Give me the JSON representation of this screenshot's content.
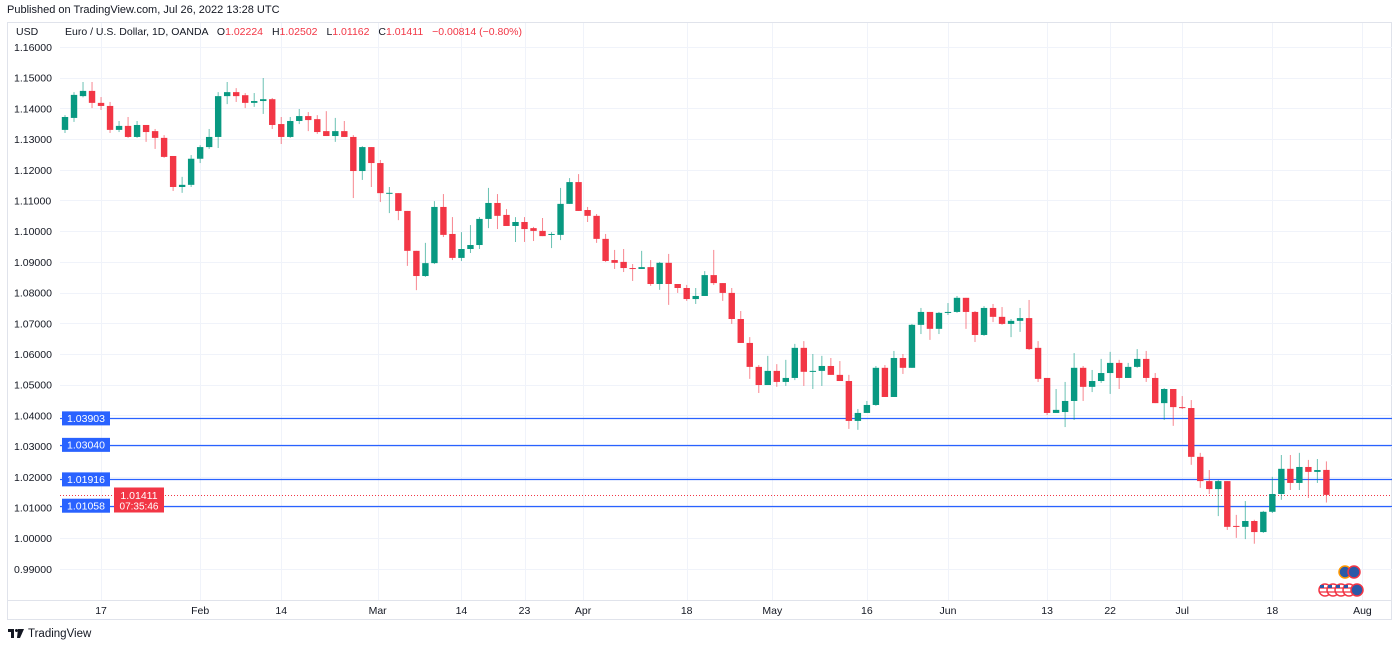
{
  "header": {
    "published": "Published on TradingView.com, Jul 26, 2022 13:28 UTC"
  },
  "legend": {
    "currency": "USD",
    "symbol": "Euro / U.S. Dollar, 1D, OANDA",
    "o_label": "O",
    "o": "1.02224",
    "h_label": "H",
    "h": "1.02502",
    "l_label": "L",
    "l": "1.01162",
    "c_label": "C",
    "c": "1.01411",
    "change": "−0.00814 (−0.80%)"
  },
  "footer": {
    "brand": "TradingView",
    "logo": "TV"
  },
  "colors": {
    "up": "#089981",
    "down": "#F23645",
    "level": "#2962FF",
    "grid": "#f0f3fa"
  },
  "chart_data": {
    "type": "candlestick",
    "title": "Euro / U.S. Dollar, 1D, OANDA",
    "ylabel": "USD",
    "ylim": [
      0.983,
      1.165
    ],
    "grid": true,
    "y_ticks": [
      "1.16000",
      "1.15000",
      "1.14000",
      "1.13000",
      "1.12000",
      "1.11000",
      "1.10000",
      "1.09000",
      "1.08000",
      "1.07000",
      "1.06000",
      "1.05000",
      "1.04000",
      "1.03000",
      "1.02000",
      "1.01000",
      "1.00000",
      "0.99000"
    ],
    "x_ticks": [
      {
        "label": "17",
        "index": 4
      },
      {
        "label": "Feb",
        "index": 15
      },
      {
        "label": "14",
        "index": 24
      },
      {
        "label": "Mar",
        "index": 34.7
      },
      {
        "label": "14",
        "index": 44
      },
      {
        "label": "23",
        "index": 51
      },
      {
        "label": "Apr",
        "index": 57.5
      },
      {
        "label": "18",
        "index": 69
      },
      {
        "label": "May",
        "index": 78.5
      },
      {
        "label": "16",
        "index": 89
      },
      {
        "label": "Jun",
        "index": 98
      },
      {
        "label": "13",
        "index": 109
      },
      {
        "label": "22",
        "index": 116
      },
      {
        "label": "Jul",
        "index": 124
      },
      {
        "label": "18",
        "index": 134
      },
      {
        "label": "Aug",
        "index": 144
      }
    ],
    "levels": [
      {
        "label": "1.03903",
        "value": 1.03903
      },
      {
        "label": "1.03040",
        "value": 1.0304
      },
      {
        "label": "1.01916",
        "value": 1.01916
      },
      {
        "label": "1.01058",
        "value": 1.01058
      }
    ],
    "last_price": {
      "label": "1.01411",
      "value": 1.01411,
      "countdown": "07:35:46"
    },
    "ohlc_columns": [
      "open",
      "high",
      "low",
      "close"
    ],
    "candles": [
      [
        1.133,
        1.1378,
        1.132,
        1.1372
      ],
      [
        1.1369,
        1.1453,
        1.1356,
        1.1444
      ],
      [
        1.144,
        1.1486,
        1.1436,
        1.1457
      ],
      [
        1.1457,
        1.1486,
        1.1401,
        1.1418
      ],
      [
        1.1418,
        1.1437,
        1.1395,
        1.1408
      ],
      [
        1.1408,
        1.1421,
        1.132,
        1.133
      ],
      [
        1.133,
        1.1359,
        1.1323,
        1.1343
      ],
      [
        1.1343,
        1.1372,
        1.1304,
        1.1307
      ],
      [
        1.1307,
        1.1359,
        1.1304,
        1.1346
      ],
      [
        1.1346,
        1.1346,
        1.1291,
        1.1323
      ],
      [
        1.1326,
        1.1333,
        1.1268,
        1.1304
      ],
      [
        1.1304,
        1.1313,
        1.1239,
        1.1242
      ],
      [
        1.1245,
        1.1245,
        1.1131,
        1.1144
      ],
      [
        1.1144,
        1.1177,
        1.1125,
        1.1151
      ],
      [
        1.1151,
        1.1248,
        1.1144,
        1.1236
      ],
      [
        1.1236,
        1.128,
        1.1222,
        1.1274
      ],
      [
        1.1274,
        1.1333,
        1.1268,
        1.1307
      ],
      [
        1.1307,
        1.1453,
        1.1271,
        1.144
      ],
      [
        1.144,
        1.1486,
        1.1414,
        1.1453
      ],
      [
        1.1453,
        1.1466,
        1.1421,
        1.144
      ],
      [
        1.1443,
        1.145,
        1.1401,
        1.1418
      ],
      [
        1.1418,
        1.145,
        1.1405,
        1.1424
      ],
      [
        1.1424,
        1.1499,
        1.1382,
        1.143
      ],
      [
        1.143,
        1.1434,
        1.1333,
        1.1346
      ],
      [
        1.1349,
        1.1372,
        1.1284,
        1.1307
      ],
      [
        1.1307,
        1.1372,
        1.1304,
        1.1359
      ],
      [
        1.1359,
        1.1398,
        1.1349,
        1.1375
      ],
      [
        1.1375,
        1.1388,
        1.1326,
        1.1362
      ],
      [
        1.1365,
        1.1378,
        1.1317,
        1.1323
      ],
      [
        1.1326,
        1.1391,
        1.131,
        1.131
      ],
      [
        1.131,
        1.1369,
        1.1291,
        1.1326
      ],
      [
        1.1326,
        1.1359,
        1.1307,
        1.1307
      ],
      [
        1.1307,
        1.1313,
        1.1108,
        1.1196
      ],
      [
        1.1196,
        1.1277,
        1.1167,
        1.1274
      ],
      [
        1.1274,
        1.1274,
        1.1144,
        1.1222
      ],
      [
        1.1222,
        1.1232,
        1.1095,
        1.1124
      ],
      [
        1.1124,
        1.1144,
        1.1059,
        1.1125
      ],
      [
        1.1124,
        1.1124,
        1.1036,
        1.1066
      ],
      [
        1.1066,
        1.1066,
        1.0887,
        1.0936
      ],
      [
        1.0936,
        1.0936,
        1.0808,
        1.0854
      ],
      [
        1.0854,
        1.0962,
        1.0851,
        1.0896
      ],
      [
        1.0896,
        1.1098,
        1.0893,
        1.1079
      ],
      [
        1.1079,
        1.1121,
        1.0981,
        1.0988
      ],
      [
        1.0991,
        1.1046,
        1.0906,
        1.0913
      ],
      [
        1.0913,
        1.0997,
        1.0903,
        1.0942
      ],
      [
        1.0942,
        1.102,
        1.0929,
        1.0955
      ],
      [
        1.0955,
        1.1046,
        1.0942,
        1.104
      ],
      [
        1.104,
        1.1141,
        1.101,
        1.1092
      ],
      [
        1.1092,
        1.1121,
        1.1007,
        1.105
      ],
      [
        1.1053,
        1.1072,
        1.1017,
        1.1017
      ],
      [
        1.1017,
        1.1046,
        1.0965,
        1.103
      ],
      [
        1.103,
        1.1046,
        1.0965,
        1.1007
      ],
      [
        1.101,
        1.1014,
        1.0968,
        1.1001
      ],
      [
        1.1001,
        1.1043,
        1.0984,
        1.0984
      ],
      [
        1.0988,
        1.0997,
        1.0945,
        1.0991
      ],
      [
        1.0988,
        1.1141,
        1.0971,
        1.1089
      ],
      [
        1.1089,
        1.1173,
        1.1089,
        1.116
      ],
      [
        1.116,
        1.1186,
        1.1066,
        1.1066
      ],
      [
        1.1069,
        1.1079,
        1.103,
        1.105
      ],
      [
        1.105,
        1.1056,
        1.0962,
        1.0975
      ],
      [
        1.0975,
        1.0991,
        1.09,
        1.0903
      ],
      [
        1.0906,
        1.0939,
        1.0877,
        1.0897
      ],
      [
        1.09,
        1.0942,
        1.0867,
        1.088
      ],
      [
        1.088,
        1.0893,
        1.0838,
        1.0877
      ],
      [
        1.0877,
        1.0936,
        1.0877,
        1.0883
      ],
      [
        1.0883,
        1.0906,
        1.0822,
        1.0828
      ],
      [
        1.0828,
        1.09,
        1.0809,
        1.0897
      ],
      [
        1.0897,
        1.0926,
        1.076,
        1.0828
      ],
      [
        1.0828,
        1.0828,
        1.0799,
        1.0815
      ],
      [
        1.0815,
        1.0825,
        1.0773,
        1.0779
      ],
      [
        1.0779,
        1.0815,
        1.0763,
        1.0789
      ],
      [
        1.0789,
        1.087,
        1.0789,
        1.0857
      ],
      [
        1.0857,
        1.0939,
        1.0825,
        1.0831
      ],
      [
        1.0831,
        1.0831,
        1.0773,
        1.0799
      ],
      [
        1.0799,
        1.0815,
        1.0698,
        1.0714
      ],
      [
        1.0714,
        1.074,
        1.0636,
        1.0636
      ],
      [
        1.0636,
        1.0655,
        1.0519,
        1.0558
      ],
      [
        1.0558,
        1.0564,
        1.0473,
        1.0499
      ],
      [
        1.0499,
        1.0594,
        1.0499,
        1.0545
      ],
      [
        1.0545,
        1.0567,
        1.0493,
        1.0509
      ],
      [
        1.0509,
        1.0581,
        1.0496,
        1.0522
      ],
      [
        1.0522,
        1.0633,
        1.0515,
        1.062
      ],
      [
        1.062,
        1.0642,
        1.0496,
        1.0542
      ],
      [
        1.0542,
        1.06,
        1.0486,
        1.0545
      ],
      [
        1.0545,
        1.0594,
        1.0496,
        1.0561
      ],
      [
        1.0561,
        1.0587,
        1.0532,
        1.0532
      ],
      [
        1.0532,
        1.0577,
        1.0512,
        1.0512
      ],
      [
        1.0512,
        1.0532,
        1.0356,
        1.0382
      ],
      [
        1.0382,
        1.0421,
        1.0353,
        1.0408
      ],
      [
        1.0408,
        1.0447,
        1.0408,
        1.0434
      ],
      [
        1.0434,
        1.0561,
        1.0431,
        1.0555
      ],
      [
        1.0555,
        1.0564,
        1.046,
        1.046
      ],
      [
        1.046,
        1.061,
        1.046,
        1.0587
      ],
      [
        1.0587,
        1.06,
        1.0535,
        1.0555
      ],
      [
        1.0555,
        1.0698,
        1.0555,
        1.0695
      ],
      [
        1.0695,
        1.075,
        1.0665,
        1.0737
      ],
      [
        1.0737,
        1.0737,
        1.0646,
        1.0682
      ],
      [
        1.0682,
        1.0737,
        1.0665,
        1.0734
      ],
      [
        1.0734,
        1.0766,
        1.0727,
        1.0737
      ],
      [
        1.0737,
        1.0789,
        1.0734,
        1.0783
      ],
      [
        1.0783,
        1.0783,
        1.0682,
        1.0737
      ],
      [
        1.0737,
        1.074,
        1.0639,
        1.0662
      ],
      [
        1.0662,
        1.0756,
        1.0659,
        1.075
      ],
      [
        1.075,
        1.0763,
        1.0704,
        1.0721
      ],
      [
        1.0721,
        1.0753,
        1.0695,
        1.0698
      ],
      [
        1.0698,
        1.0714,
        1.0655,
        1.0708
      ],
      [
        1.0708,
        1.075,
        1.0672,
        1.0717
      ],
      [
        1.0717,
        1.0776,
        1.0613,
        1.0616
      ],
      [
        1.062,
        1.0642,
        1.0509,
        1.0519
      ],
      [
        1.0522,
        1.0522,
        1.0401,
        1.0408
      ],
      [
        1.0408,
        1.0486,
        1.0408,
        1.0418
      ],
      [
        1.0411,
        1.0509,
        1.0362,
        1.0447
      ],
      [
        1.0447,
        1.0603,
        1.0385,
        1.0555
      ],
      [
        1.0555,
        1.0561,
        1.0447,
        1.0493
      ],
      [
        1.0493,
        1.0548,
        1.0476,
        1.0512
      ],
      [
        1.0512,
        1.0584,
        1.0506,
        1.0538
      ],
      [
        1.0538,
        1.0607,
        1.047,
        1.0571
      ],
      [
        1.0571,
        1.0581,
        1.0486,
        1.0522
      ],
      [
        1.0522,
        1.0571,
        1.0522,
        1.0558
      ],
      [
        1.0558,
        1.0616,
        1.0555,
        1.0584
      ],
      [
        1.0584,
        1.061,
        1.0509,
        1.0522
      ],
      [
        1.0522,
        1.0538,
        1.044,
        1.044
      ],
      [
        1.044,
        1.0489,
        1.0385,
        1.0486
      ],
      [
        1.0486,
        1.0486,
        1.0366,
        1.0427
      ],
      [
        1.0427,
        1.0463,
        1.0421,
        1.0424
      ],
      [
        1.0424,
        1.045,
        1.0239,
        1.0265
      ],
      [
        1.0265,
        1.0278,
        1.0164,
        1.0186
      ],
      [
        1.0186,
        1.0222,
        1.0144,
        1.016
      ],
      [
        1.016,
        1.019,
        1.0072,
        1.0186
      ],
      [
        1.0186,
        1.0186,
        1.0027,
        1.0037
      ],
      [
        1.004,
        1.0076,
        1.0001,
        1.0037
      ],
      [
        1.0037,
        1.0121,
        0.9997,
        1.0056
      ],
      [
        1.0056,
        1.006,
        0.9982,
        1.002
      ],
      [
        1.002,
        1.0089,
        1.0017,
        1.0086
      ],
      [
        1.0086,
        1.02,
        1.0082,
        1.0144
      ],
      [
        1.0144,
        1.0271,
        1.0125,
        1.0226
      ],
      [
        1.0226,
        1.0271,
        1.0157,
        1.018
      ],
      [
        1.018,
        1.0278,
        1.0157,
        1.0232
      ],
      [
        1.0232,
        1.0255,
        1.0131,
        1.0216
      ],
      [
        1.0216,
        1.0258,
        1.018,
        1.0222
      ],
      [
        1.02224,
        1.02502,
        1.01162,
        1.01411
      ]
    ]
  }
}
